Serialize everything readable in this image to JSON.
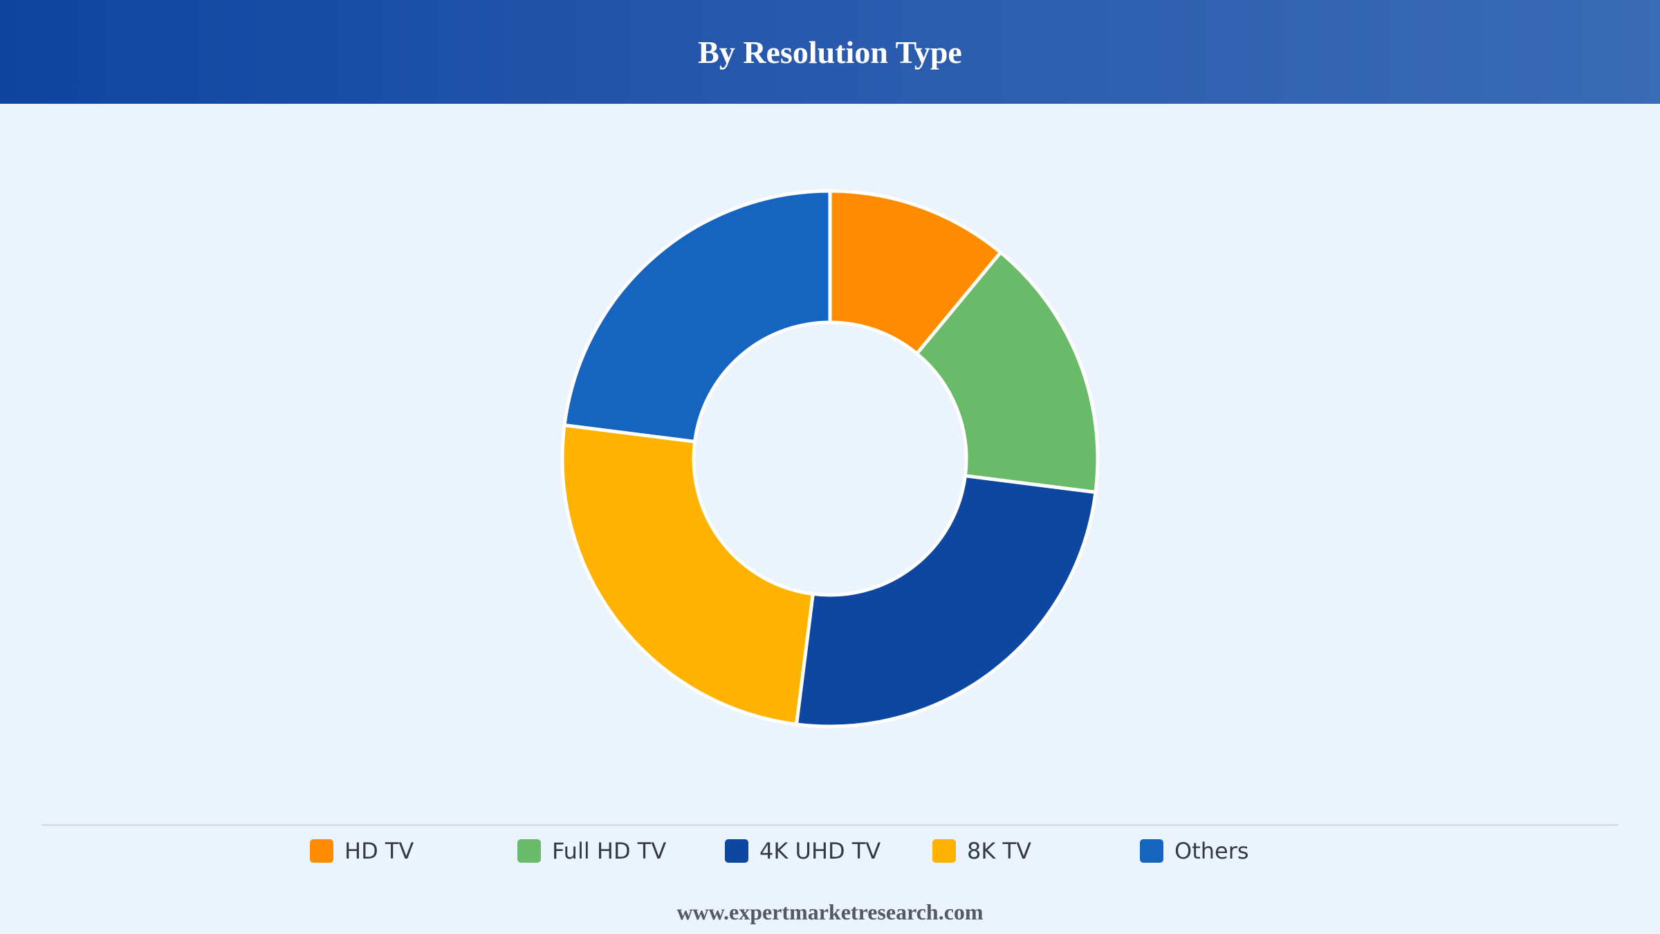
{
  "header": {
    "title": "By Resolution Type"
  },
  "footer": {
    "source": "www.expertmarketresearch.com"
  },
  "chart_data": {
    "type": "pie",
    "title": "By Resolution Type",
    "categories": [
      "HD TV",
      "Full HD TV",
      "4K UHD TV",
      "8K TV",
      "Others"
    ],
    "values": [
      11,
      16,
      25,
      25,
      23
    ],
    "colors": [
      "#ff8c00",
      "#69bb6a",
      "#0d47a1",
      "#ffb300",
      "#1565c0"
    ],
    "legend_position": "bottom",
    "donut": true
  }
}
